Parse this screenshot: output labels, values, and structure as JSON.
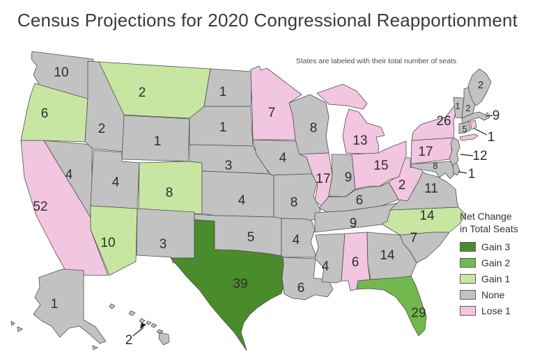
{
  "title": "Census Projections for 2020 Congressional Reapportionment",
  "subtitle": "States are labeled with their total number of seats",
  "colors": {
    "gain3": "#4a8b2b",
    "gain2": "#72b84e",
    "gain1": "#c7e6a2",
    "none": "#c2c2c2",
    "lose1": "#f2c5e0",
    "border": "#4d4d4d",
    "label": "#2d2d2d"
  },
  "legend": {
    "title_line1": "Net Change",
    "title_line2": "in Total Seats",
    "items": [
      {
        "key": "gain3",
        "label": "Gain 3",
        "color": "#4a8b2b"
      },
      {
        "key": "gain2",
        "label": "Gain 2",
        "color": "#72b84e"
      },
      {
        "key": "gain1",
        "label": "Gain 1",
        "color": "#c7e6a2"
      },
      {
        "key": "none",
        "label": "None",
        "color": "#c2c2c2"
      },
      {
        "key": "lose1",
        "label": "Lose 1",
        "color": "#f2c5e0"
      }
    ]
  },
  "states": [
    {
      "abbr": "WA",
      "name": "Washington",
      "seats": 10,
      "change": "none"
    },
    {
      "abbr": "OR",
      "name": "Oregon",
      "seats": 6,
      "change": "gain1"
    },
    {
      "abbr": "CA",
      "name": "California",
      "seats": 52,
      "change": "lose1"
    },
    {
      "abbr": "NV",
      "name": "Nevada",
      "seats": 4,
      "change": "none"
    },
    {
      "abbr": "ID",
      "name": "Idaho",
      "seats": 2,
      "change": "none"
    },
    {
      "abbr": "MT",
      "name": "Montana",
      "seats": 2,
      "change": "gain1"
    },
    {
      "abbr": "WY",
      "name": "Wyoming",
      "seats": 1,
      "change": "none"
    },
    {
      "abbr": "UT",
      "name": "Utah",
      "seats": 4,
      "change": "none"
    },
    {
      "abbr": "CO",
      "name": "Colorado",
      "seats": 8,
      "change": "gain1"
    },
    {
      "abbr": "AZ",
      "name": "Arizona",
      "seats": 10,
      "change": "gain1"
    },
    {
      "abbr": "NM",
      "name": "New Mexico",
      "seats": 3,
      "change": "none"
    },
    {
      "abbr": "ND",
      "name": "North Dakota",
      "seats": 1,
      "change": "none"
    },
    {
      "abbr": "SD",
      "name": "South Dakota",
      "seats": 1,
      "change": "none"
    },
    {
      "abbr": "NE",
      "name": "Nebraska",
      "seats": 3,
      "change": "none"
    },
    {
      "abbr": "KS",
      "name": "Kansas",
      "seats": 4,
      "change": "none"
    },
    {
      "abbr": "OK",
      "name": "Oklahoma",
      "seats": 5,
      "change": "none"
    },
    {
      "abbr": "TX",
      "name": "Texas",
      "seats": 39,
      "change": "gain3"
    },
    {
      "abbr": "MN",
      "name": "Minnesota",
      "seats": 7,
      "change": "lose1"
    },
    {
      "abbr": "IA",
      "name": "Iowa",
      "seats": 4,
      "change": "none"
    },
    {
      "abbr": "MO",
      "name": "Missouri",
      "seats": 8,
      "change": "none"
    },
    {
      "abbr": "AR",
      "name": "Arkansas",
      "seats": 4,
      "change": "none"
    },
    {
      "abbr": "LA",
      "name": "Louisiana",
      "seats": 6,
      "change": "none"
    },
    {
      "abbr": "WI",
      "name": "Wisconsin",
      "seats": 8,
      "change": "none"
    },
    {
      "abbr": "IL",
      "name": "Illinois",
      "seats": 17,
      "change": "lose1"
    },
    {
      "abbr": "MI",
      "name": "Michigan",
      "seats": 13,
      "change": "lose1"
    },
    {
      "abbr": "IN",
      "name": "Indiana",
      "seats": 9,
      "change": "none"
    },
    {
      "abbr": "OH",
      "name": "Ohio",
      "seats": 15,
      "change": "lose1"
    },
    {
      "abbr": "KY",
      "name": "Kentucky",
      "seats": 6,
      "change": "none"
    },
    {
      "abbr": "TN",
      "name": "Tennessee",
      "seats": 9,
      "change": "none"
    },
    {
      "abbr": "MS",
      "name": "Mississippi",
      "seats": 4,
      "change": "none"
    },
    {
      "abbr": "AL",
      "name": "Alabama",
      "seats": 6,
      "change": "lose1"
    },
    {
      "abbr": "GA",
      "name": "Georgia",
      "seats": 14,
      "change": "none"
    },
    {
      "abbr": "FL",
      "name": "Florida",
      "seats": 29,
      "change": "gain2"
    },
    {
      "abbr": "SC",
      "name": "South Carolina",
      "seats": 7,
      "change": "none"
    },
    {
      "abbr": "NC",
      "name": "North Carolina",
      "seats": 14,
      "change": "gain1"
    },
    {
      "abbr": "VA",
      "name": "Virginia",
      "seats": 11,
      "change": "none"
    },
    {
      "abbr": "WV",
      "name": "West Virginia",
      "seats": 2,
      "change": "lose1"
    },
    {
      "abbr": "PA",
      "name": "Pennsylvania",
      "seats": 17,
      "change": "lose1"
    },
    {
      "abbr": "NY",
      "name": "New York",
      "seats": 26,
      "change": "lose1"
    },
    {
      "abbr": "MD",
      "name": "Maryland",
      "seats": 8,
      "change": "none"
    },
    {
      "abbr": "DE",
      "name": "Delaware",
      "seats": 1,
      "change": "none"
    },
    {
      "abbr": "NJ",
      "name": "New Jersey",
      "seats": 12,
      "change": "none"
    },
    {
      "abbr": "CT",
      "name": "Connecticut",
      "seats": 5,
      "change": "none"
    },
    {
      "abbr": "RI",
      "name": "Rhode Island",
      "seats": 1,
      "change": "lose1"
    },
    {
      "abbr": "MA",
      "name": "Massachusetts",
      "seats": 9,
      "change": "none"
    },
    {
      "abbr": "VT",
      "name": "Vermont",
      "seats": 1,
      "change": "none"
    },
    {
      "abbr": "NH",
      "name": "New Hampshire",
      "seats": 2,
      "change": "none"
    },
    {
      "abbr": "ME",
      "name": "Maine",
      "seats": 2,
      "change": "none"
    },
    {
      "abbr": "AK",
      "name": "Alaska",
      "seats": 1,
      "change": "none"
    },
    {
      "abbr": "HI",
      "name": "Hawaii",
      "seats": 2,
      "change": "none"
    }
  ]
}
